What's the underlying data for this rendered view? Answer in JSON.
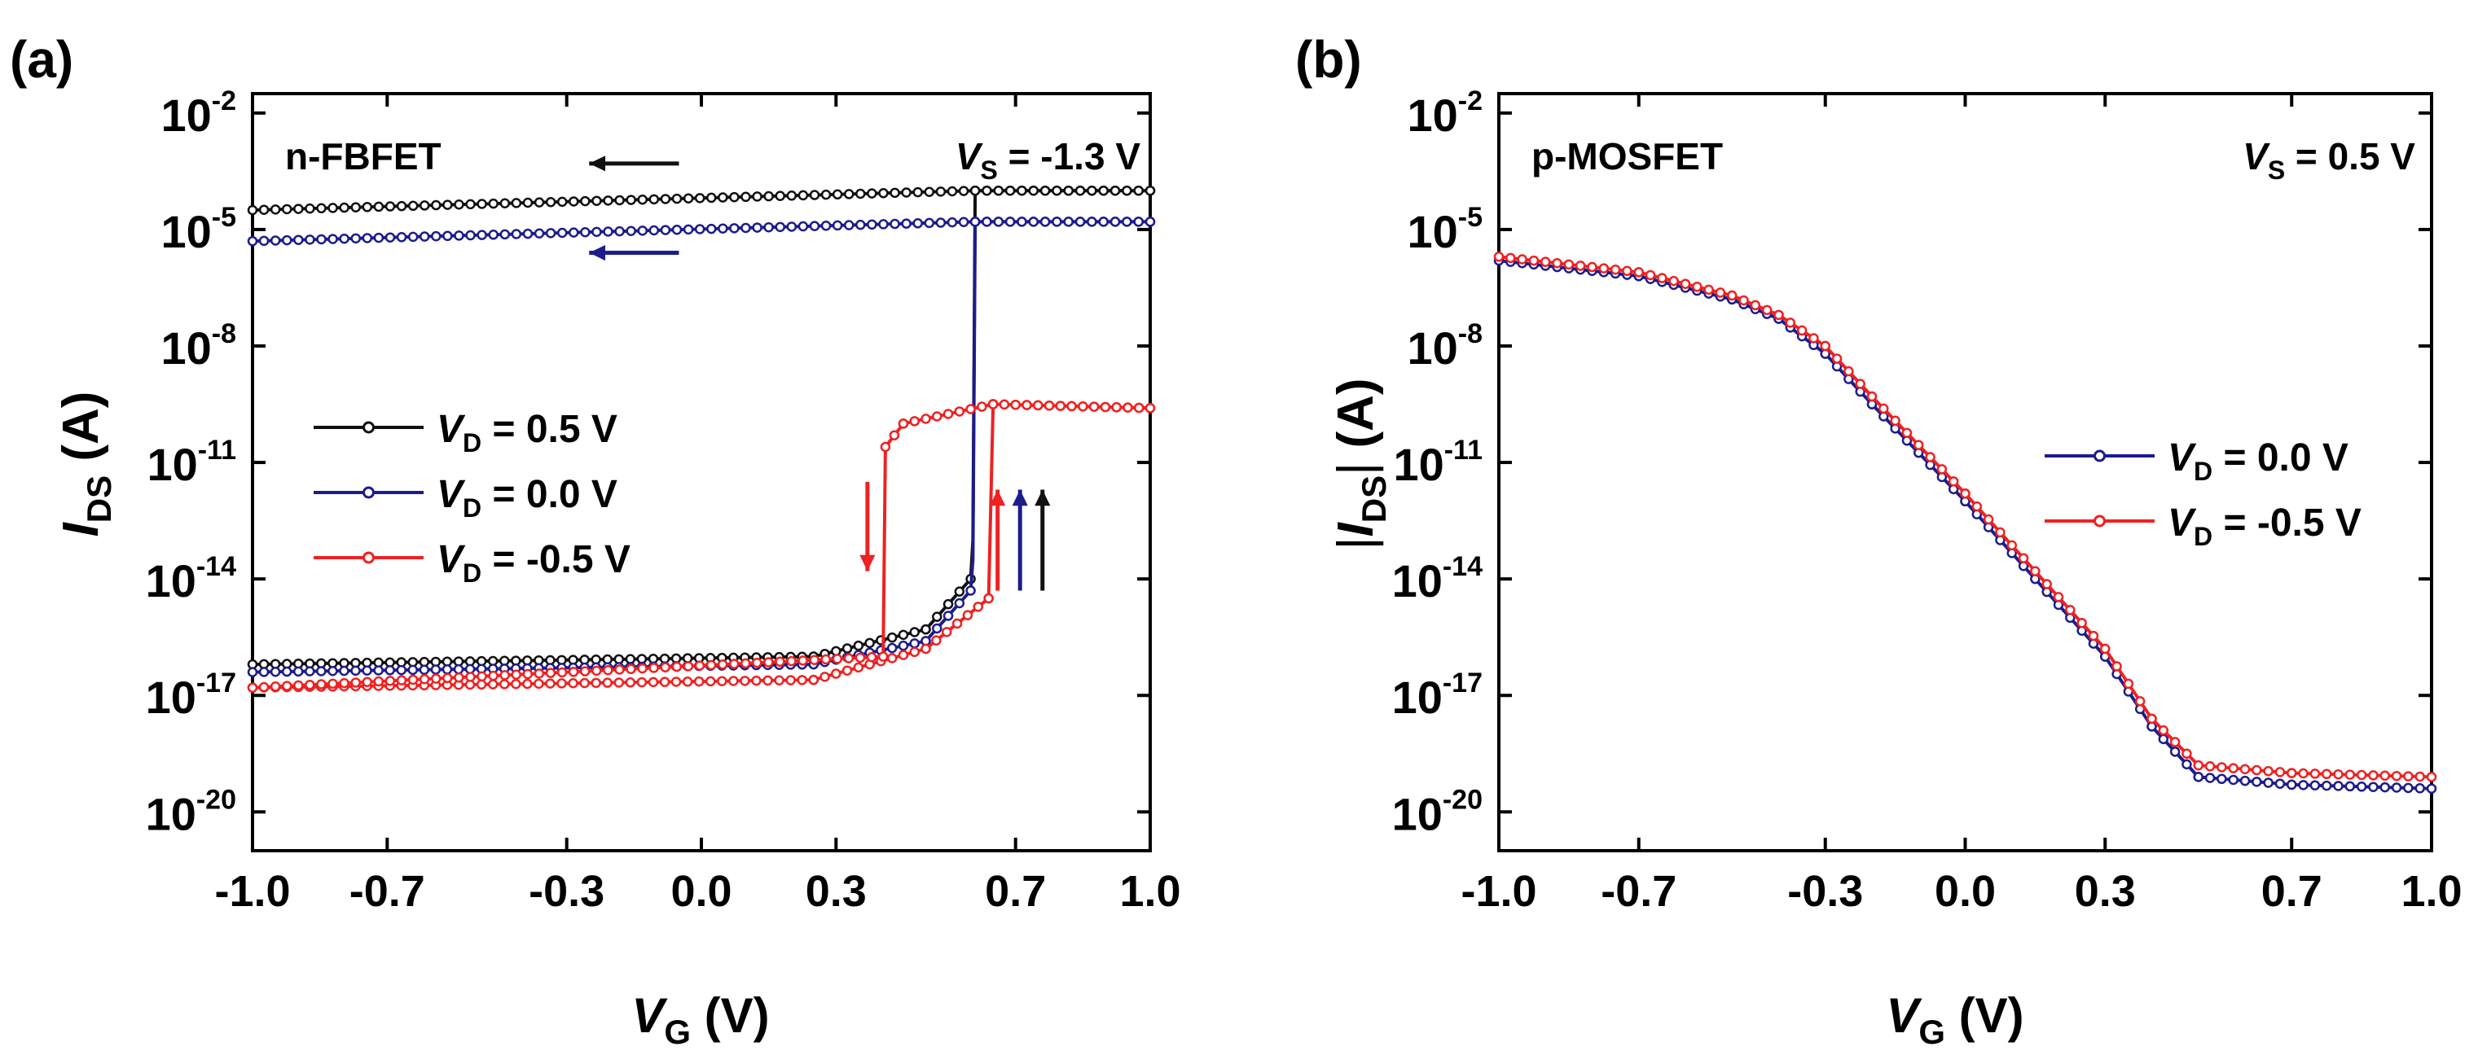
{
  "colors": {
    "black": "#111111",
    "blue": "#1c1c8c",
    "red": "#ee2222"
  },
  "chart_data": [
    {
      "type": "line",
      "panel_label": "(a)",
      "device_label": "n-FBFET",
      "condition": {
        "var": "V",
        "sub": "S",
        "text": " = -1.3 V"
      },
      "xlabel": {
        "var": "V",
        "sub": "G",
        "unit": " (V)"
      },
      "ylabel": {
        "var": "I",
        "sub": "DS",
        "unit": " (A)"
      },
      "yscale": "log",
      "xlim": [
        -1.0,
        1.0
      ],
      "ylim_exp": [
        -21,
        -1.5
      ],
      "xticks": [
        -1.0,
        -0.7,
        -0.3,
        0.0,
        0.3,
        0.7,
        1.0
      ],
      "xtick_labels": [
        "-1.0",
        "-0.7",
        "-0.3",
        "0.0",
        "0.3",
        "0.7",
        "1.0"
      ],
      "ytick_exps": [
        -20,
        -17,
        -14,
        -11,
        -8,
        -5,
        -2
      ],
      "ytick_labels": [
        "-20",
        "-17",
        "-14",
        "-11",
        "-8",
        "-5",
        "-2"
      ],
      "legend": {
        "position": "center-left"
      },
      "series": [
        {
          "name": "V_D = 0.5 V",
          "var": "V",
          "sub": "D",
          "value_text": " = 0.5 V",
          "color": "black",
          "forward": {
            "x": [
              -1.0,
              0.25,
              0.5,
              0.6,
              0.605,
              0.61,
              1.0
            ],
            "log_y": [
              -16.2,
              -16.0,
              -15.3,
              -14.0,
              -13.0,
              -4.0,
              -4.0
            ]
          },
          "reverse": {
            "x": [
              1.0,
              0.61,
              -1.0
            ],
            "log_y": [
              -4.0,
              -4.0,
              -4.5
            ]
          }
        },
        {
          "name": "V_D = 0.0 V",
          "var": "V",
          "sub": "D",
          "value_text": " = 0.0 V",
          "color": "blue",
          "forward": {
            "x": [
              -1.0,
              0.25,
              0.5,
              0.6,
              0.605,
              0.61,
              1.0
            ],
            "log_y": [
              -16.4,
              -16.2,
              -15.6,
              -14.3,
              -13.5,
              -4.8,
              -4.8
            ]
          },
          "reverse": {
            "x": [
              1.0,
              0.61,
              -1.0
            ],
            "log_y": [
              -4.8,
              -4.8,
              -5.3
            ]
          }
        },
        {
          "name": "V_D = -0.5 V",
          "var": "V",
          "sub": "D",
          "value_text": " = -0.5 V",
          "color": "red",
          "forward": {
            "x": [
              -1.0,
              0.25,
              0.5,
              0.64,
              0.65,
              1.0
            ],
            "log_y": [
              -16.8,
              -16.6,
              -15.8,
              -14.5,
              -9.5,
              -9.6
            ]
          },
          "reverse": {
            "x": [
              1.0,
              0.65,
              0.45,
              0.41,
              0.405,
              -1.0
            ],
            "log_y": [
              -9.6,
              -9.5,
              -10.0,
              -10.6,
              -16.0,
              -16.8
            ]
          }
        }
      ],
      "annotations": [
        {
          "type": "arrow",
          "direction": "left",
          "color": "black",
          "x": [
            -0.05,
            -0.25
          ],
          "log_y": -3.3
        },
        {
          "type": "arrow",
          "direction": "left",
          "color": "blue",
          "x": [
            -0.05,
            -0.25
          ],
          "log_y": -5.6
        },
        {
          "type": "arrow",
          "direction": "down",
          "color": "red",
          "x": [
            0.37,
            0.37
          ],
          "log_y": [
            -11.5,
            -13.8
          ]
        },
        {
          "type": "arrow",
          "direction": "up",
          "color": "red",
          "x": [
            0.66,
            0.66
          ],
          "log_y": [
            -14.3,
            -11.7
          ]
        },
        {
          "type": "arrow",
          "direction": "up",
          "color": "blue",
          "x": [
            0.71,
            0.71
          ],
          "log_y": [
            -14.3,
            -11.7
          ]
        },
        {
          "type": "arrow",
          "direction": "up",
          "color": "black",
          "x": [
            0.76,
            0.76
          ],
          "log_y": [
            -14.3,
            -11.7
          ]
        }
      ]
    },
    {
      "type": "line",
      "panel_label": "(b)",
      "device_label": "p-MOSFET",
      "condition": {
        "var": "V",
        "sub": "S",
        "text": " = 0.5 V"
      },
      "xlabel": {
        "var": "V",
        "sub": "G",
        "unit": " (V)"
      },
      "ylabel": {
        "var": "I",
        "sub": "DS",
        "unit": " (A)",
        "absolute": true
      },
      "yscale": "log",
      "xlim": [
        -1.0,
        1.0
      ],
      "ylim_exp": [
        -21,
        -1.5
      ],
      "xticks": [
        -1.0,
        -0.7,
        -0.3,
        0.0,
        0.3,
        0.7,
        1.0
      ],
      "xtick_labels": [
        "-1.0",
        "-0.7",
        "-0.3",
        "0.0",
        "0.3",
        "0.7",
        "1.0"
      ],
      "ytick_exps": [
        -20,
        -17,
        -14,
        -11,
        -8,
        -5,
        -2
      ],
      "ytick_labels": [
        "-20",
        "-17",
        "-14",
        "-11",
        "-8",
        "-5",
        "-2"
      ],
      "legend": {
        "position": "center-right"
      },
      "series": [
        {
          "name": "V_D = 0.0 V",
          "var": "V",
          "sub": "D",
          "value_text": " = 0.0 V",
          "color": "blue",
          "x": [
            -1.0,
            -0.7,
            -0.5,
            -0.4,
            -0.3,
            -0.2,
            0.0,
            0.3,
            0.4,
            0.5,
            0.7,
            1.0
          ],
          "log_y": [
            -5.8,
            -6.2,
            -6.8,
            -7.3,
            -8.2,
            -9.5,
            -12.0,
            -16.0,
            -17.8,
            -19.1,
            -19.3,
            -19.4
          ]
        },
        {
          "name": "V_D = -0.5 V",
          "var": "V",
          "sub": "D",
          "value_text": " = -0.5 V",
          "color": "red",
          "x": [
            -1.0,
            -0.7,
            -0.5,
            -0.4,
            -0.3,
            -0.2,
            0.0,
            0.3,
            0.4,
            0.5,
            0.7,
            1.0
          ],
          "log_y": [
            -5.7,
            -6.1,
            -6.7,
            -7.2,
            -8.0,
            -9.3,
            -11.8,
            -15.8,
            -17.6,
            -18.8,
            -19.0,
            -19.1
          ]
        }
      ]
    }
  ]
}
